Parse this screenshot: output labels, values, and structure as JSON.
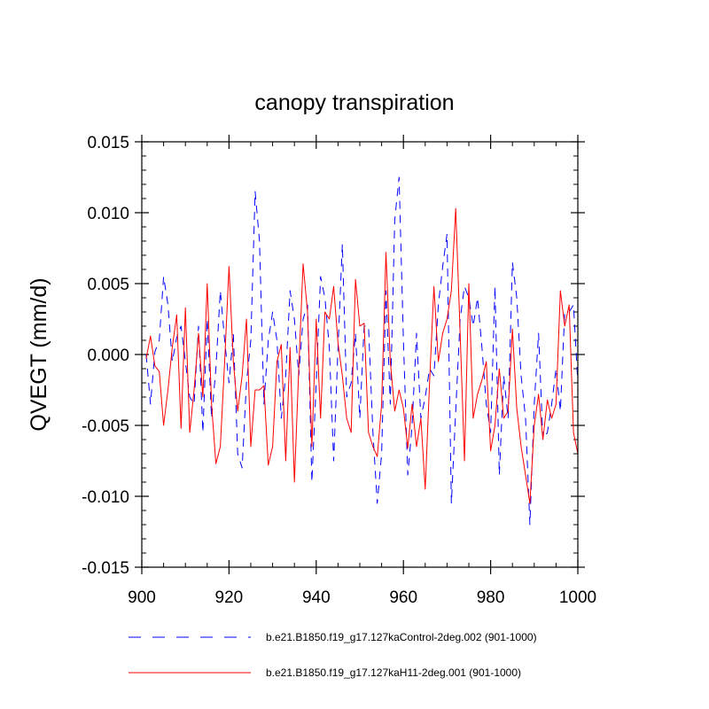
{
  "chart_data": {
    "type": "line",
    "title": "canopy transpiration",
    "xlabel": "",
    "ylabel": "QVEGT  (mm/d)",
    "xlim": [
      900,
      1000
    ],
    "ylim": [
      -0.015,
      0.015
    ],
    "x_ticks": [
      900,
      920,
      940,
      960,
      980,
      1000
    ],
    "x_tick_labels": [
      "900",
      "920",
      "940",
      "960",
      "980",
      "1000"
    ],
    "y_ticks": [
      -0.015,
      -0.01,
      -0.005,
      0.0,
      0.005,
      0.01,
      0.015
    ],
    "y_tick_labels": [
      "-0.015",
      "-0.010",
      "-0.005",
      "0.000",
      "0.005",
      "0.010",
      "0.015"
    ],
    "x_start": 901,
    "series": [
      {
        "name": "b.e21.B1850.f19_g17.127kaControl-2deg.002 (901-1000)",
        "color": "#0000ff",
        "style": "dashed",
        "values": [
          0.0,
          -0.0035,
          0.0002,
          0.001,
          0.0055,
          0.0035,
          -0.0005,
          0.0012,
          0.002,
          -0.0005,
          -0.003,
          -0.0035,
          0.002,
          -0.0055,
          0.0025,
          -0.0045,
          -0.001,
          0.0045,
          0.001,
          -0.002,
          0.0015,
          -0.007,
          -0.008,
          -0.002,
          0.001,
          0.0115,
          0.008,
          -0.0035,
          0.001,
          0.003,
          0.001,
          -0.0045,
          -0.0015,
          0.0045,
          0.0025,
          -0.0015,
          0.0025,
          0.0035,
          -0.009,
          -0.002,
          0.0055,
          0.004,
          0.0005,
          -0.0075,
          0.0005,
          0.0078,
          -0.003,
          -0.002,
          0.0015,
          -0.0045,
          0.002,
          0.002,
          -0.0055,
          -0.0105,
          -0.007,
          0.0045,
          -0.0035,
          0.0095,
          0.0125,
          0.001,
          -0.0085,
          -0.005,
          0.0015,
          -0.0045,
          -0.003,
          -0.001,
          -0.0015,
          0.0035,
          0.0062,
          0.0085,
          -0.0105,
          -0.004,
          0.0025,
          0.0048,
          0.004,
          0.002,
          0.004,
          0.0005,
          -0.0035,
          -0.0055,
          0.0048,
          -0.0085,
          -0.0015,
          -0.0045,
          0.0065,
          0.004,
          -0.0015,
          -0.0045,
          -0.012,
          -0.0035,
          0.0015,
          -0.006,
          -0.0055,
          -0.0035,
          -0.001,
          -0.004,
          0.003,
          0.003,
          0.0035,
          -0.002
        ]
      },
      {
        "name": "b.e21.B1850.f19_g17.127kaH11-2deg.001 (901-1000)",
        "color": "#ff0000",
        "style": "solid",
        "values": [
          -0.0003,
          0.0013,
          -0.0008,
          -0.0012,
          -0.005,
          -0.0025,
          0.0005,
          0.0028,
          -0.0052,
          0.0033,
          -0.0055,
          -0.0025,
          0.0015,
          -0.003,
          0.005,
          -0.0035,
          -0.0077,
          -0.0065,
          -0.0005,
          0.0062,
          -0.0005,
          -0.004,
          -0.0015,
          0.0025,
          -0.0065,
          -0.0025,
          -0.0025,
          -0.0022,
          -0.0078,
          -0.0065,
          -0.0005,
          0.0007,
          -0.0075,
          0.0005,
          -0.009,
          -0.001,
          0.0064,
          0.003,
          -0.0065,
          0.0025,
          -0.0045,
          0.003,
          0.0025,
          0.0048,
          0.0008,
          -0.0015,
          -0.0045,
          -0.0055,
          0.0053,
          0.002,
          0.0022,
          -0.0055,
          -0.0065,
          -0.0072,
          -0.0035,
          0.0072,
          -0.0005,
          -0.004,
          -0.0025,
          -0.0038,
          -0.0066,
          -0.0035,
          -0.0065,
          -0.0045,
          -0.0095,
          -0.002,
          0.0048,
          -0.0005,
          0.0015,
          0.0025,
          0.0045,
          0.0103,
          0.0015,
          -0.0075,
          0.005,
          -0.0045,
          -0.0028,
          -0.0018,
          -0.0005,
          -0.0068,
          -0.005,
          -0.001,
          -0.0045,
          -0.004,
          0.0018,
          -0.0038,
          -0.0065,
          -0.0085,
          -0.0105,
          -0.005,
          -0.0028,
          -0.006,
          -0.0032,
          -0.0045,
          -0.0035,
          0.0045,
          0.002,
          0.0035,
          -0.0055,
          -0.007
        ]
      }
    ],
    "legend_position": "bottom"
  }
}
